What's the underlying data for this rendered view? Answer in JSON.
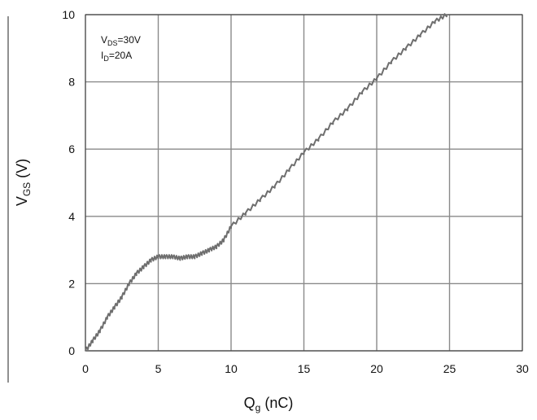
{
  "chart_data": {
    "type": "line",
    "xlabel": {
      "main": "Q",
      "sub": "g",
      "rest": " (nC)"
    },
    "ylabel": {
      "main": "V",
      "sub": "GS",
      "rest": " (V)"
    },
    "xlim": [
      0,
      30
    ],
    "ylim": [
      0,
      10
    ],
    "xticks": [
      "0",
      "5",
      "10",
      "15",
      "20",
      "25",
      "30"
    ],
    "yticks": [
      "0",
      "2",
      "4",
      "6",
      "8",
      "10"
    ],
    "grid": true,
    "annotation": {
      "line1": {
        "main": "V",
        "sub": "DS",
        "rest": "=30V"
      },
      "line2": {
        "main": "I",
        "sub": "D",
        "rest": "=20A"
      }
    },
    "series": [
      {
        "color": "#6e6e6e",
        "x": [
          0,
          0.5,
          1,
          1.5,
          2,
          2.5,
          3,
          3.5,
          4,
          4.5,
          5,
          5.5,
          6,
          6.5,
          7,
          7.5,
          8,
          8.5,
          9,
          9.5,
          10,
          11,
          12,
          13,
          14,
          15,
          16,
          17,
          18,
          19,
          20,
          21,
          22,
          23,
          24,
          24.8
        ],
        "y": [
          0,
          0.3,
          0.6,
          1.0,
          1.3,
          1.6,
          2.0,
          2.3,
          2.5,
          2.7,
          2.8,
          2.8,
          2.8,
          2.75,
          2.8,
          2.8,
          2.9,
          3.0,
          3.1,
          3.3,
          3.7,
          4.1,
          4.5,
          4.9,
          5.4,
          5.9,
          6.3,
          6.8,
          7.2,
          7.7,
          8.1,
          8.6,
          9.0,
          9.4,
          9.8,
          10.0
        ]
      }
    ]
  }
}
